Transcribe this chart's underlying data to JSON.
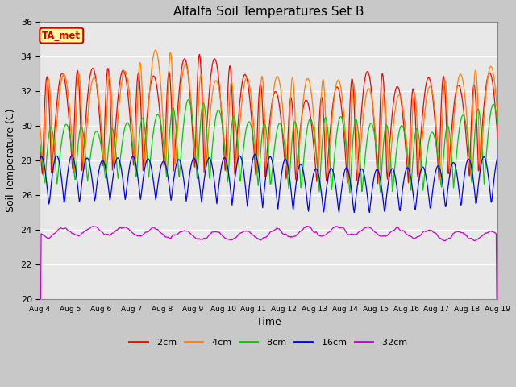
{
  "title": "Alfalfa Soil Temperatures Set B",
  "xlabel": "Time",
  "ylabel": "Soil Temperature (C)",
  "ylim": [
    20,
    36
  ],
  "yticks": [
    20,
    22,
    24,
    26,
    28,
    30,
    32,
    34,
    36
  ],
  "start_day": 4,
  "end_day": 19,
  "n_days": 15,
  "colors": {
    "-2cm": "#ff0000",
    "-4cm": "#ff8000",
    "-8cm": "#00cc00",
    "-16cm": "#0000ff",
    "-32cm": "#cc00cc"
  },
  "legend_labels": [
    "-2cm",
    "-4cm",
    "-8cm",
    "-16cm",
    "-32cm"
  ],
  "annotation_text": "TA_met",
  "annotation_box_color": "#ffff99",
  "annotation_text_color": "#cc0000",
  "fig_facecolor": "#c8c8c8",
  "ax_facecolor": "#e8e8e8",
  "series_params": {
    "-2cm": {
      "amp": 5.8,
      "mean": 27.0,
      "lag": 0.0,
      "skew": 0.7
    },
    "-4cm": {
      "amp": 5.5,
      "mean": 27.0,
      "lag": 0.05,
      "skew": 0.7
    },
    "-8cm": {
      "amp": 4.0,
      "mean": 26.5,
      "lag": 0.18,
      "skew": 0.6
    },
    "-16cm": {
      "amp": 2.6,
      "mean": 25.3,
      "lag": 0.42,
      "skew": 0.5
    },
    "-32cm": {
      "amp": 0.35,
      "mean": 23.8,
      "lag": 0.0,
      "skew": 0.0
    }
  }
}
